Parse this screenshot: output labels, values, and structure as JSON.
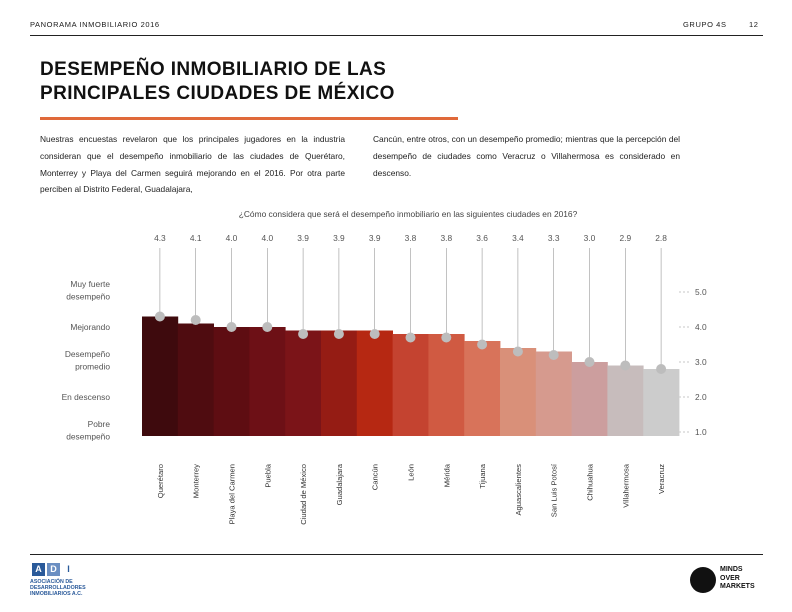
{
  "header": {
    "left": "PANORAMA INMOBILIARIO 2016",
    "right": "GRUPO 4S",
    "page": "12"
  },
  "title": {
    "line1": "DESEMPEÑO INMOBILIARIO DE LAS",
    "line2": "PRINCIPALES CIUDADES DE MÉXICO"
  },
  "intro": {
    "left": "Nuestras encuestas revelaron que los principales jugadores en la industria consideran que el desempeño inmobiliario de las ciudades de Querétaro, Monterrey y Playa del Carmen seguirá mejorando en el 2016. Por otra parte perciben al Distrito Federal, Guadalajara,",
    "right": "Cancún, entre otros, con un desempeño promedio; mientras que la percepción del desempeño de ciudades como Veracruz o Villahermosa es considerado en descenso."
  },
  "chart_data": {
    "type": "area",
    "title": "¿Cómo considera que será el desempeño inmobiliario en las siguientes ciudades en 2016?",
    "categories": [
      "Querétaro",
      "Monterrey",
      "Playa del Carmen",
      "Puebla",
      "Ciudad de México",
      "Guadalajara",
      "Cancún",
      "León",
      "Mérida",
      "Tijuana",
      "Aguascalientes",
      "San Luis Potosí",
      "Chihuahua",
      "Villahermosa",
      "Veracruz"
    ],
    "values": [
      4.3,
      4.1,
      4.0,
      4.0,
      3.9,
      3.9,
      3.9,
      3.8,
      3.8,
      3.6,
      3.4,
      3.3,
      3.0,
      2.9,
      2.8
    ],
    "value_labels": [
      "4.3",
      "4.1",
      "4.0",
      "4.0",
      "3.9",
      "3.9",
      "3.9",
      "3.8",
      "3.8",
      "3.6",
      "3.4",
      "3.3",
      "3.0",
      "2.9",
      "2.8"
    ],
    "marker_values": [
      4.3,
      4.2,
      4.0,
      4.0,
      3.8,
      3.8,
      3.8,
      3.7,
      3.7,
      3.5,
      3.3,
      3.2,
      3.0,
      2.9,
      2.8
    ],
    "bar_colors": [
      "#3e0a0d",
      "#4f0c10",
      "#5e0d12",
      "#6d1016",
      "#7b1418",
      "#951c14",
      "#b62812",
      "#c44330",
      "#d05a42",
      "#d8735a",
      "#d99079",
      "#d69a8e",
      "#cc9e9e",
      "#c7bcbc",
      "#cccccc"
    ],
    "ylim": [
      1.0,
      5.0
    ],
    "right_ticks": [
      "5.0",
      "4.0",
      "3.0",
      "2.0",
      "1.0"
    ],
    "right_tick_values": [
      5.0,
      4.0,
      3.0,
      2.0,
      1.0
    ],
    "left_labels": [
      {
        "lines": [
          "Muy fuerte",
          "desempeño"
        ],
        "value": 5.0
      },
      {
        "lines": [
          "Mejorando"
        ],
        "value": 4.0
      },
      {
        "lines": [
          "Desempeño",
          "promedio"
        ],
        "value": 3.0
      },
      {
        "lines": [
          "En descenso"
        ],
        "value": 2.0
      },
      {
        "lines": [
          "Pobre",
          "desempeño"
        ],
        "value": 1.0
      }
    ],
    "colors": {
      "marker": "#bdbdbd",
      "guide": "#9a9a9a",
      "label": "#555555"
    }
  },
  "footer": {
    "adi_letters": [
      "A",
      "D",
      "I"
    ],
    "adi_lines": [
      "ASOCIACIÓN DE",
      "DESARROLLADORES",
      "INMOBILIARIOS A.C."
    ],
    "mom_lines": [
      "MINDS",
      "OVER",
      "MARKETS"
    ]
  }
}
